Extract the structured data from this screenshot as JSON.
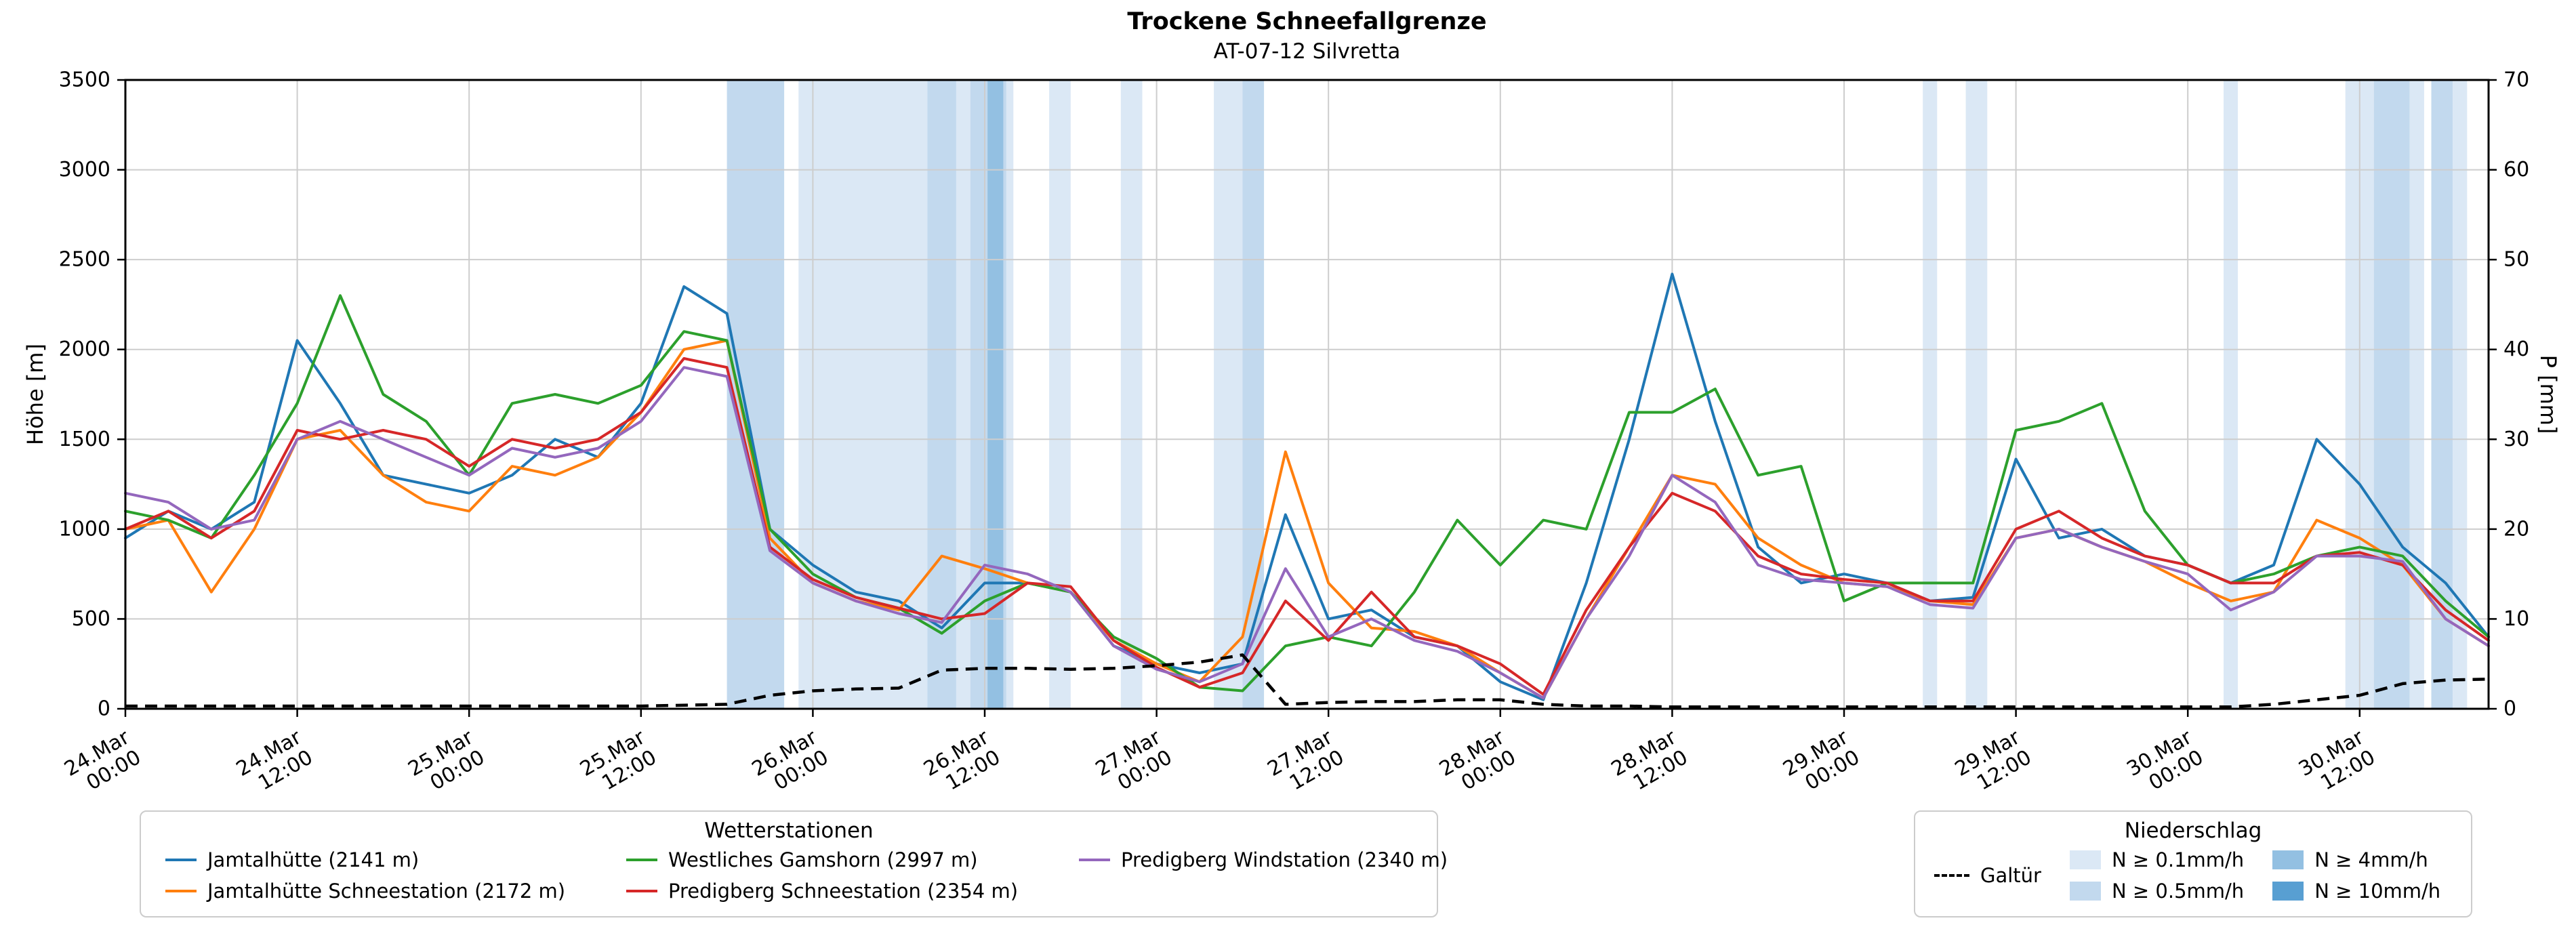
{
  "title": "Trockene Schneefallgrenze",
  "subtitle": "AT-07-12 Silvretta",
  "axes": {
    "y_left_label": "Höhe [m]",
    "y_right_label": "P [mm]",
    "y_left_ticks": [
      0,
      500,
      1000,
      1500,
      2000,
      2500,
      3000,
      3500
    ],
    "y_right_ticks": [
      0,
      10,
      20,
      30,
      40,
      50,
      60,
      70
    ],
    "x_ticks": [
      {
        "t": 0,
        "line1": "24.Mar",
        "line2": "00:00"
      },
      {
        "t": 12,
        "line1": "24.Mar",
        "line2": "12:00"
      },
      {
        "t": 24,
        "line1": "25.Mar",
        "line2": "00:00"
      },
      {
        "t": 36,
        "line1": "25.Mar",
        "line2": "12:00"
      },
      {
        "t": 48,
        "line1": "26.Mar",
        "line2": "00:00"
      },
      {
        "t": 60,
        "line1": "26.Mar",
        "line2": "12:00"
      },
      {
        "t": 72,
        "line1": "27.Mar",
        "line2": "00:00"
      },
      {
        "t": 84,
        "line1": "27.Mar",
        "line2": "12:00"
      },
      {
        "t": 96,
        "line1": "28.Mar",
        "line2": "00:00"
      },
      {
        "t": 108,
        "line1": "28.Mar",
        "line2": "12:00"
      },
      {
        "t": 120,
        "line1": "29.Mar",
        "line2": "00:00"
      },
      {
        "t": 132,
        "line1": "29.Mar",
        "line2": "12:00"
      },
      {
        "t": 144,
        "line1": "30.Mar",
        "line2": "00:00"
      },
      {
        "t": 156,
        "line1": "30.Mar",
        "line2": "12:00"
      }
    ]
  },
  "chart_data": {
    "type": "line",
    "x_unit": "hours since 24.Mar 00:00",
    "t_range": [
      0,
      165
    ],
    "t_step": 3,
    "y_left_range": [
      0,
      3500
    ],
    "y_right_range": [
      0,
      70
    ],
    "grid": true,
    "series": [
      {
        "name": "Jamtalhütte (2141 m)",
        "color": "#1f77b4",
        "axis": "left",
        "values": [
          950,
          1100,
          1000,
          1150,
          2050,
          1700,
          1300,
          1250,
          1200,
          1300,
          1500,
          1400,
          1700,
          2350,
          2200,
          1000,
          800,
          650,
          600,
          450,
          700,
          700,
          650,
          350,
          250,
          200,
          250,
          1080,
          500,
          550,
          400,
          350,
          150,
          50,
          700,
          1500,
          2420,
          1600,
          900,
          700,
          750,
          700,
          600,
          620,
          1390,
          950,
          1000,
          850,
          800,
          700,
          800,
          1500,
          1250,
          900,
          700,
          400
        ]
      },
      {
        "name": "Jamtalhütte Schneestation (2172 m)",
        "color": "#ff7f0e",
        "axis": "left",
        "values": [
          1000,
          1050,
          650,
          1000,
          1500,
          1550,
          1300,
          1150,
          1100,
          1350,
          1300,
          1400,
          1650,
          2000,
          2050,
          950,
          700,
          600,
          550,
          850,
          780,
          700,
          650,
          380,
          250,
          150,
          400,
          1430,
          700,
          450,
          430,
          350,
          200,
          60,
          500,
          900,
          1300,
          1250,
          950,
          800,
          700,
          680,
          600,
          580,
          950,
          1000,
          900,
          820,
          700,
          600,
          650,
          1050,
          950,
          800,
          500,
          350
        ]
      },
      {
        "name": "Westliches Gamshorn (2997 m)",
        "color": "#2ca02c",
        "axis": "left",
        "values": [
          1100,
          1050,
          950,
          1300,
          1700,
          2300,
          1750,
          1600,
          1300,
          1700,
          1750,
          1700,
          1800,
          2100,
          2050,
          1000,
          750,
          620,
          560,
          420,
          600,
          700,
          650,
          400,
          280,
          120,
          100,
          350,
          400,
          350,
          650,
          1050,
          800,
          1050,
          1000,
          1650,
          1650,
          1780,
          1300,
          1350,
          600,
          700,
          700,
          700,
          1550,
          1600,
          1700,
          1100,
          800,
          700,
          750,
          850,
          900,
          850,
          600,
          400
        ]
      },
      {
        "name": "Predigberg Schneestation (2354 m)",
        "color": "#d62728",
        "axis": "left",
        "values": [
          1000,
          1100,
          950,
          1100,
          1550,
          1500,
          1550,
          1500,
          1350,
          1500,
          1450,
          1500,
          1650,
          1950,
          1900,
          900,
          720,
          620,
          560,
          500,
          530,
          700,
          680,
          380,
          230,
          120,
          200,
          600,
          380,
          650,
          400,
          350,
          250,
          80,
          550,
          900,
          1200,
          1100,
          850,
          750,
          720,
          700,
          600,
          600,
          1000,
          1100,
          950,
          850,
          800,
          700,
          700,
          850,
          870,
          800,
          550,
          380
        ]
      },
      {
        "name": "Predigberg Windstation (2340 m)",
        "color": "#9467bd",
        "axis": "left",
        "values": [
          1200,
          1150,
          1000,
          1050,
          1500,
          1600,
          1500,
          1400,
          1300,
          1450,
          1400,
          1450,
          1600,
          1900,
          1850,
          880,
          700,
          600,
          530,
          480,
          800,
          750,
          650,
          350,
          220,
          150,
          250,
          780,
          400,
          500,
          380,
          320,
          200,
          60,
          500,
          850,
          1300,
          1150,
          800,
          720,
          700,
          680,
          580,
          560,
          950,
          1000,
          900,
          820,
          750,
          550,
          650,
          850,
          850,
          820,
          500,
          350
        ]
      }
    ],
    "galtuer": {
      "name": "Galtür",
      "color": "#000000",
      "axis": "right",
      "dash": true,
      "values": [
        0.3,
        0.3,
        0.3,
        0.3,
        0.3,
        0.3,
        0.3,
        0.3,
        0.3,
        0.3,
        0.3,
        0.3,
        0.3,
        0.4,
        0.5,
        1.5,
        2.0,
        2.2,
        2.3,
        4.3,
        4.5,
        4.5,
        4.4,
        4.5,
        4.8,
        5.2,
        6.0,
        0.5,
        0.7,
        0.8,
        0.8,
        1.0,
        1.0,
        0.5,
        0.3,
        0.3,
        0.2,
        0.2,
        0.2,
        0.2,
        0.2,
        0.2,
        0.2,
        0.2,
        0.2,
        0.2,
        0.2,
        0.2,
        0.2,
        0.2,
        0.5,
        1.0,
        1.5,
        2.8,
        3.2,
        3.3
      ]
    },
    "band_colors": {
      "l01": "#dbe8f5",
      "l05": "#c2d9ee",
      "l4": "#93c0e2",
      "l10": "#589fd2"
    },
    "precip_bands": [
      {
        "start": 42,
        "end": 46,
        "level": "l05"
      },
      {
        "start": 47,
        "end": 62,
        "level": "l01"
      },
      {
        "start": 56,
        "end": 58,
        "level": "l05"
      },
      {
        "start": 59,
        "end": 61.5,
        "level": "l05"
      },
      {
        "start": 60.2,
        "end": 61.3,
        "level": "l4"
      },
      {
        "start": 64.5,
        "end": 66,
        "level": "l01"
      },
      {
        "start": 69.5,
        "end": 71,
        "level": "l01"
      },
      {
        "start": 76,
        "end": 78,
        "level": "l01"
      },
      {
        "start": 78,
        "end": 79.5,
        "level": "l05"
      },
      {
        "start": 125.5,
        "end": 126.5,
        "level": "l01"
      },
      {
        "start": 128.5,
        "end": 130,
        "level": "l01"
      },
      {
        "start": 146.5,
        "end": 147.5,
        "level": "l01"
      },
      {
        "start": 155,
        "end": 157,
        "level": "l01"
      },
      {
        "start": 157,
        "end": 159.5,
        "level": "l05"
      },
      {
        "start": 159.5,
        "end": 160.5,
        "level": "l01"
      },
      {
        "start": 161,
        "end": 162.5,
        "level": "l05"
      },
      {
        "start": 162.5,
        "end": 163.5,
        "level": "l01"
      }
    ]
  },
  "legend_stations": {
    "title": "Wetterstationen"
  },
  "legend_precip": {
    "title": "Niederschlag",
    "items": [
      {
        "label": "N ≥ 0.1mm/h",
        "level": "l01",
        "color": "#dbe8f5"
      },
      {
        "label": "N ≥ 0.5mm/h",
        "level": "l05",
        "color": "#c2d9ee"
      },
      {
        "label": "N ≥ 4mm/h",
        "level": "l4",
        "color": "#93c0e2"
      },
      {
        "label": "N ≥ 10mm/h",
        "level": "l10",
        "color": "#589fd2"
      }
    ]
  }
}
